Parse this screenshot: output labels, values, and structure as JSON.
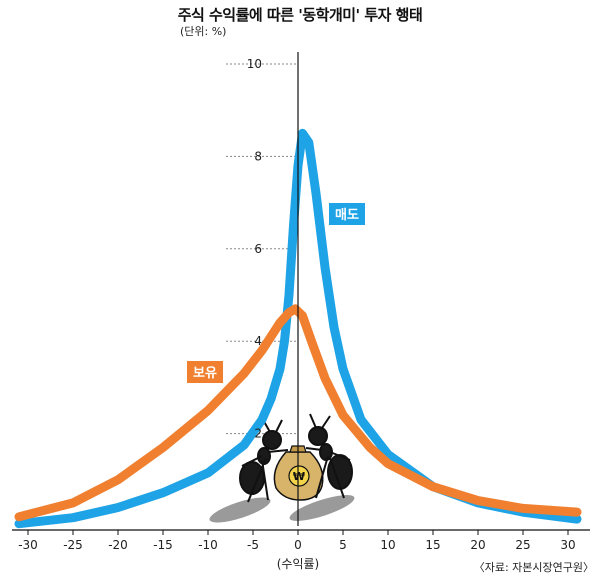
{
  "title": "주식 수익률에 따른 '동학개미' 투자 행태",
  "unit_note": "(단위: %)",
  "source_note": "〈자료: 자본시장연구원〉",
  "colors": {
    "sell": "#1ea3e6",
    "hold": "#f08030",
    "axis": "#111111",
    "grid": "#888888"
  },
  "icons": [
    "ant-icon",
    "money-bag-icon",
    "won-icon"
  ],
  "money_symbol": "₩",
  "chart_data": {
    "type": "line",
    "title": "주식 수익률에 따른 '동학개미' 투자 행태",
    "xlabel": "(수익률)",
    "ylabel": "",
    "xlim": [
      -31,
      31
    ],
    "ylim": [
      0,
      10.5
    ],
    "xticks": [
      -30,
      -25,
      -20,
      -15,
      -10,
      -5,
      0,
      5,
      10,
      15,
      20,
      25,
      30
    ],
    "yticks": [
      2,
      4,
      6,
      8,
      10
    ],
    "grid": false,
    "series": [
      {
        "name": "매도",
        "color": "#1ea3e6",
        "points": [
          [
            -31,
            0.05
          ],
          [
            -25,
            0.18
          ],
          [
            -20,
            0.4
          ],
          [
            -15,
            0.72
          ],
          [
            -10,
            1.15
          ],
          [
            -6,
            1.75
          ],
          [
            -4,
            2.3
          ],
          [
            -3,
            2.75
          ],
          [
            -2,
            3.4
          ],
          [
            -1.5,
            4.0
          ],
          [
            -1,
            5.0
          ],
          [
            -0.5,
            6.5
          ],
          [
            0,
            7.8
          ],
          [
            0.5,
            8.5
          ],
          [
            1.2,
            8.3
          ],
          [
            2,
            7.2
          ],
          [
            3,
            5.6
          ],
          [
            4,
            4.3
          ],
          [
            5,
            3.4
          ],
          [
            7,
            2.3
          ],
          [
            10,
            1.55
          ],
          [
            15,
            0.85
          ],
          [
            20,
            0.5
          ],
          [
            25,
            0.3
          ],
          [
            31,
            0.15
          ]
        ]
      },
      {
        "name": "보유",
        "color": "#f08030",
        "points": [
          [
            -31,
            0.2
          ],
          [
            -25,
            0.5
          ],
          [
            -20,
            1.0
          ],
          [
            -15,
            1.7
          ],
          [
            -10,
            2.5
          ],
          [
            -6,
            3.3
          ],
          [
            -4,
            3.8
          ],
          [
            -2,
            4.4
          ],
          [
            -1,
            4.62
          ],
          [
            -0.3,
            4.7
          ],
          [
            0.5,
            4.55
          ],
          [
            1.5,
            4.0
          ],
          [
            3,
            3.2
          ],
          [
            5,
            2.4
          ],
          [
            8,
            1.7
          ],
          [
            10,
            1.35
          ],
          [
            15,
            0.85
          ],
          [
            20,
            0.55
          ],
          [
            25,
            0.38
          ],
          [
            31,
            0.3
          ]
        ]
      }
    ],
    "annotations": [
      {
        "series": "매도",
        "text": "매도"
      },
      {
        "series": "보유",
        "text": "보유"
      }
    ]
  }
}
